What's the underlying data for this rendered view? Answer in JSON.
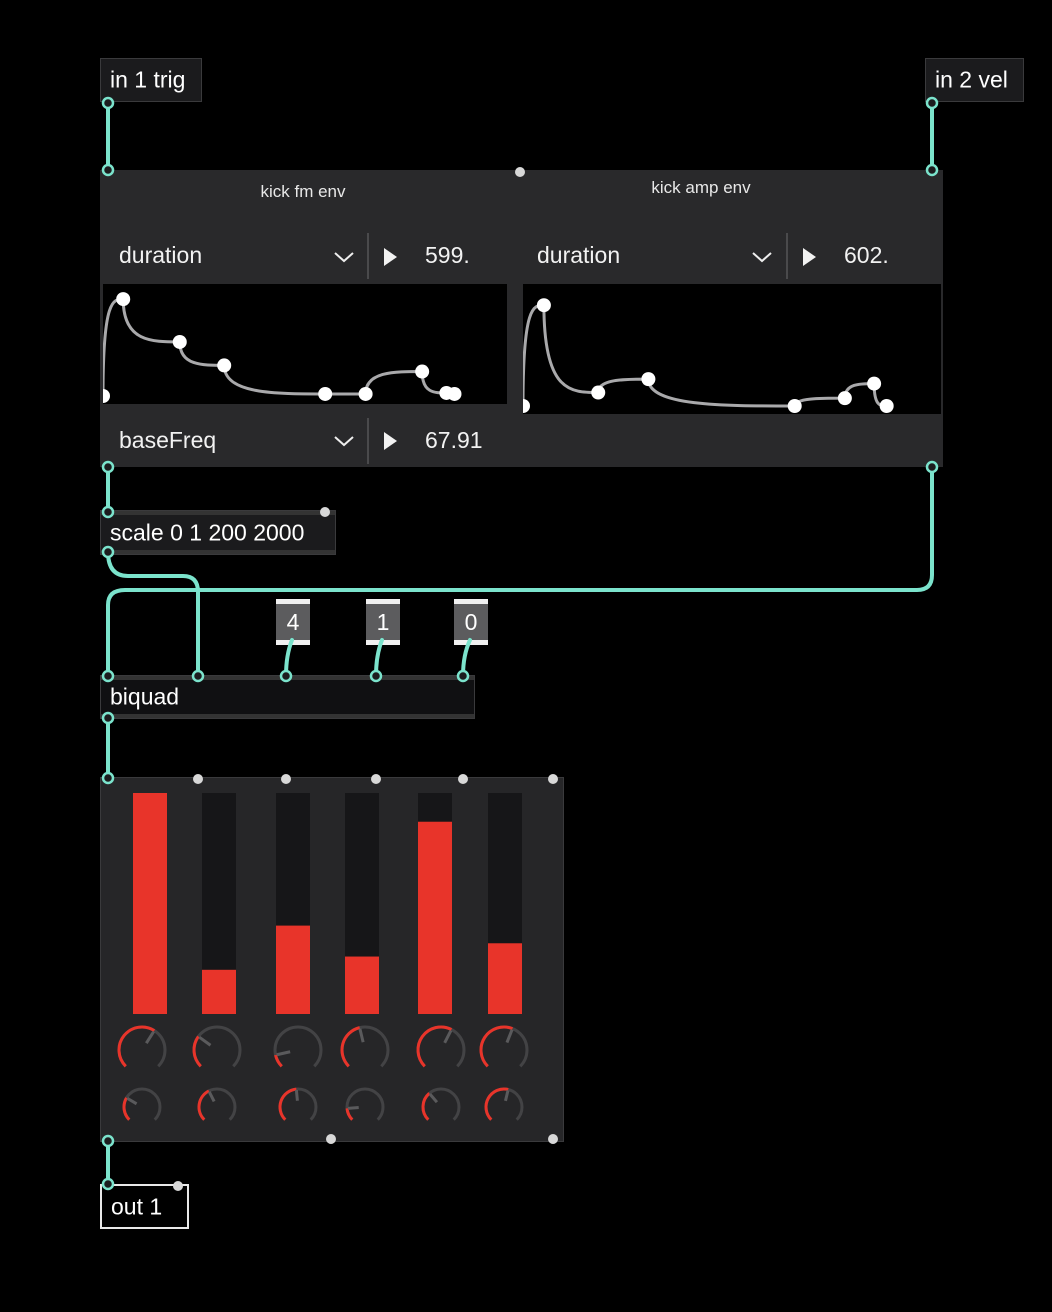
{
  "inlets": {
    "in1": "in 1 trig",
    "in2": "in 2 vel"
  },
  "outlet": {
    "out1": "out 1"
  },
  "env_panel": {
    "fm": {
      "title": "kick fm env",
      "param": "duration",
      "value": "599.",
      "points": [
        [
          0.0,
          1.0
        ],
        [
          0.05,
          0.05
        ],
        [
          0.19,
          0.47
        ],
        [
          0.3,
          0.7
        ],
        [
          0.55,
          0.98
        ],
        [
          0.65,
          0.98
        ],
        [
          0.79,
          0.76
        ],
        [
          0.85,
          0.97
        ],
        [
          0.87,
          0.98
        ]
      ]
    },
    "amp": {
      "title": "kick amp env",
      "param": "duration",
      "value": "602.",
      "points": [
        [
          0.0,
          1.0
        ],
        [
          0.05,
          0.1
        ],
        [
          0.18,
          0.88
        ],
        [
          0.3,
          0.76
        ],
        [
          0.65,
          1.0
        ],
        [
          0.77,
          0.93
        ],
        [
          0.84,
          0.8
        ],
        [
          0.87,
          1.0
        ]
      ]
    },
    "bottom": {
      "param": "baseFreq",
      "value": "67.91"
    }
  },
  "scale": {
    "label": "scale 0 1 200 2000"
  },
  "biquad": {
    "label": "biquad"
  },
  "messages": [
    "4",
    "1",
    "0"
  ],
  "slider_bank": {
    "levels": [
      1.0,
      0.2,
      0.4,
      0.26,
      0.87,
      0.32
    ],
    "knobs_top": [
      0.62,
      0.3,
      0.12,
      0.45,
      0.6,
      0.58
    ],
    "knobs_bottom": [
      0.28,
      0.4,
      0.48,
      0.15,
      0.35,
      0.55
    ]
  },
  "colors": {
    "cable": "#7be3cc",
    "slider_fill": "#e8342a",
    "background": "#000000"
  }
}
